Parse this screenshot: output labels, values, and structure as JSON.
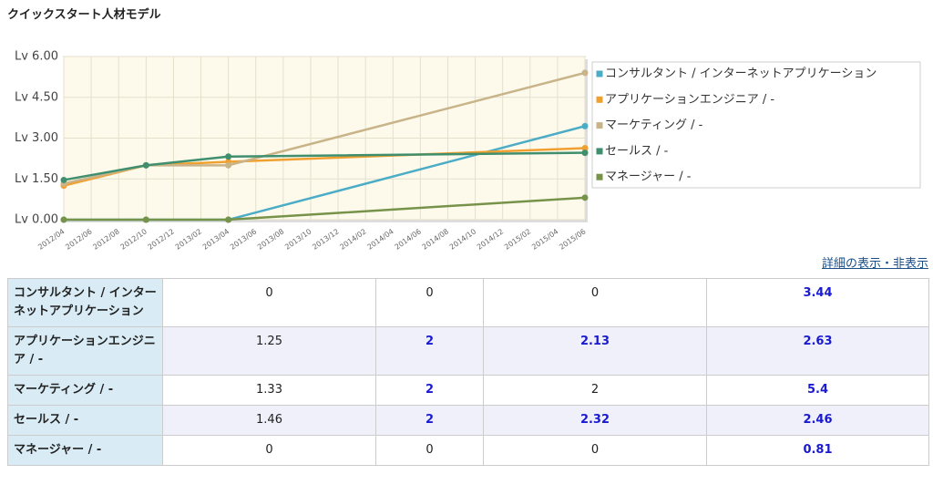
{
  "header": {
    "title": "クイックスタート人材モデル"
  },
  "chart_data": {
    "type": "line",
    "x": [
      "2012/04",
      "2012/10",
      "2013/04",
      "2015/06"
    ],
    "xlim": [
      "2012/04",
      "2015/06"
    ],
    "xticks": [
      "2012/04",
      "2012/06",
      "2012/08",
      "2012/10",
      "2012/12",
      "2013/02",
      "2013/04",
      "2013/06",
      "2013/08",
      "2013/10",
      "2013/12",
      "2014/02",
      "2014/04",
      "2014/06",
      "2014/08",
      "2014/10",
      "2014/12",
      "2015/02",
      "2015/04",
      "2015/06"
    ],
    "ylim": [
      0,
      6
    ],
    "yticks": [
      {
        "value": 0,
        "label": "Lv 0.00"
      },
      {
        "value": 1.5,
        "label": "Lv 1.50"
      },
      {
        "value": 3,
        "label": "Lv 3.00"
      },
      {
        "value": 4.5,
        "label": "Lv 4.50"
      },
      {
        "value": 6,
        "label": "Lv 6.00"
      }
    ],
    "grid": true,
    "series": [
      {
        "name": "コンサルタント / インターネットアプリケーション",
        "color": "#4bacc6",
        "values": [
          0,
          0,
          0,
          3.44
        ]
      },
      {
        "name": "アプリケーションエンジニア / -",
        "color": "#f0a030",
        "values": [
          1.25,
          2,
          2.13,
          2.63
        ]
      },
      {
        "name": "マーケティング / -",
        "color": "#c9b48a",
        "values": [
          1.33,
          2,
          2,
          5.4
        ]
      },
      {
        "name": "セールス / -",
        "color": "#3f8f6f",
        "values": [
          1.46,
          2,
          2.32,
          2.46
        ]
      },
      {
        "name": "マネージャー / -",
        "color": "#77934a",
        "values": [
          0,
          0,
          0,
          0.81
        ]
      }
    ]
  },
  "toggle_link": "詳細の表示・非表示",
  "table": {
    "rows": [
      {
        "label": "コンサルタント / インターネットアプリケーション",
        "cells": [
          {
            "text": "0",
            "emphasized": false
          },
          {
            "text": "0",
            "emphasized": false
          },
          {
            "text": "0",
            "emphasized": false
          },
          {
            "text": "3.44",
            "emphasized": true
          }
        ]
      },
      {
        "label": "アプリケーションエンジニア / -",
        "cells": [
          {
            "text": "1.25",
            "emphasized": false
          },
          {
            "text": "2",
            "emphasized": true
          },
          {
            "text": "2.13",
            "emphasized": true
          },
          {
            "text": "2.63",
            "emphasized": true
          }
        ]
      },
      {
        "label": "マーケティング / -",
        "cells": [
          {
            "text": "1.33",
            "emphasized": false
          },
          {
            "text": "2",
            "emphasized": true
          },
          {
            "text": "2",
            "emphasized": false
          },
          {
            "text": "5.4",
            "emphasized": true
          }
        ]
      },
      {
        "label": "セールス / -",
        "cells": [
          {
            "text": "1.46",
            "emphasized": false
          },
          {
            "text": "2",
            "emphasized": true
          },
          {
            "text": "2.32",
            "emphasized": true
          },
          {
            "text": "2.46",
            "emphasized": true
          }
        ]
      },
      {
        "label": "マネージャー / -",
        "cells": [
          {
            "text": "0",
            "emphasized": false
          },
          {
            "text": "0",
            "emphasized": false
          },
          {
            "text": "0",
            "emphasized": false
          },
          {
            "text": "0.81",
            "emphasized": true
          }
        ]
      }
    ]
  }
}
